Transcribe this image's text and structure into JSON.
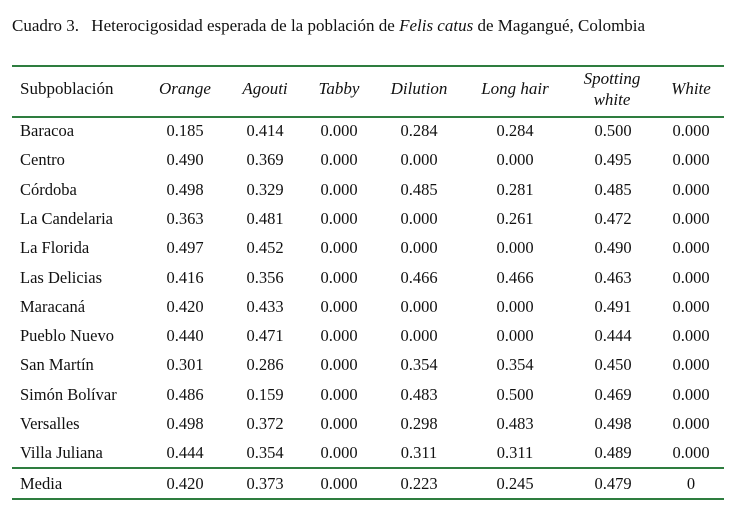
{
  "caption": {
    "label": "Cuadro 3.",
    "text_before": "Heterocigosidad esperada de la población de ",
    "species": "Felis catus",
    "text_after": " de Magangué, Colombia"
  },
  "table": {
    "headers": [
      {
        "text": "Subpoblación"
      },
      {
        "text": "Orange"
      },
      {
        "text": "Agouti"
      },
      {
        "text": "Tabby"
      },
      {
        "text": "Dilution"
      },
      {
        "text": "Long hair"
      },
      {
        "line1": "Spotting",
        "line2": "white"
      },
      {
        "text": "White"
      }
    ],
    "rows": [
      [
        "Baracoa",
        "0.185",
        "0.414",
        "0.000",
        "0.284",
        "0.284",
        "0.500",
        "0.000"
      ],
      [
        "Centro",
        "0.490",
        "0.369",
        "0.000",
        "0.000",
        "0.000",
        "0.495",
        "0.000"
      ],
      [
        "Córdoba",
        "0.498",
        "0.329",
        "0.000",
        "0.485",
        "0.281",
        "0.485",
        "0.000"
      ],
      [
        "La Candelaria",
        "0.363",
        "0.481",
        "0.000",
        "0.000",
        "0.261",
        "0.472",
        "0.000"
      ],
      [
        "La Florida",
        "0.497",
        "0.452",
        "0.000",
        "0.000",
        "0.000",
        "0.490",
        "0.000"
      ],
      [
        "Las Delicias",
        "0.416",
        "0.356",
        "0.000",
        "0.466",
        "0.466",
        "0.463",
        "0.000"
      ],
      [
        "Maracaná",
        "0.420",
        "0.433",
        "0.000",
        "0.000",
        "0.000",
        "0.491",
        "0.000"
      ],
      [
        "Pueblo Nuevo",
        "0.440",
        "0.471",
        "0.000",
        "0.000",
        "0.000",
        "0.444",
        "0.000"
      ],
      [
        "San Martín",
        "0.301",
        "0.286",
        "0.000",
        "0.354",
        "0.354",
        "0.450",
        "0.000"
      ],
      [
        "Simón Bolívar",
        "0.486",
        "0.159",
        "0.000",
        "0.483",
        "0.500",
        "0.469",
        "0.000"
      ],
      [
        "Versalles",
        "0.498",
        "0.372",
        "0.000",
        "0.298",
        "0.483",
        "0.498",
        "0.000"
      ],
      [
        "Villa Juliana",
        "0.444",
        "0.354",
        "0.000",
        "0.311",
        "0.311",
        "0.489",
        "0.000"
      ]
    ],
    "footer": [
      "Media",
      "0.420",
      "0.373",
      "0.000",
      "0.223",
      "0.245",
      "0.479",
      "0"
    ]
  },
  "colors": {
    "rule": "#2e7d3f",
    "text": "#111111"
  }
}
